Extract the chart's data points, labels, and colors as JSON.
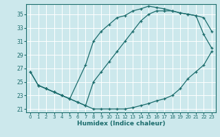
{
  "xlabel": "Humidex (Indice chaleur)",
  "bg_color": "#cce8ec",
  "grid_color": "#ffffff",
  "line_color": "#1a6b6b",
  "xlim": [
    -0.5,
    23.5
  ],
  "ylim": [
    20.5,
    36.5
  ],
  "xticks": [
    0,
    1,
    2,
    3,
    4,
    5,
    6,
    7,
    8,
    9,
    10,
    11,
    12,
    13,
    14,
    15,
    16,
    17,
    18,
    19,
    20,
    21,
    22,
    23
  ],
  "yticks": [
    21,
    23,
    25,
    27,
    29,
    31,
    33,
    35
  ],
  "line1": {
    "x": [
      0,
      1,
      2,
      3,
      4,
      5,
      6,
      7,
      8,
      9,
      10,
      11,
      12,
      13,
      14,
      15,
      16,
      17,
      18,
      19,
      20,
      21,
      22,
      23
    ],
    "y": [
      26.5,
      24.5,
      24.0,
      23.5,
      23.0,
      22.5,
      22.0,
      21.5,
      21.0,
      21.0,
      21.0,
      21.0,
      21.0,
      21.2,
      21.5,
      21.8,
      22.2,
      22.5,
      23.0,
      24.0,
      25.5,
      26.5,
      27.5,
      29.5
    ]
  },
  "line2": {
    "x": [
      0,
      1,
      2,
      3,
      4,
      5,
      7,
      8,
      9,
      10,
      11,
      12,
      13,
      14,
      15,
      16,
      17,
      18,
      19,
      20,
      21,
      22,
      23
    ],
    "y": [
      26.5,
      24.5,
      24.0,
      23.5,
      23.0,
      22.5,
      27.5,
      31.0,
      32.5,
      33.5,
      34.5,
      34.8,
      35.5,
      35.8,
      36.2,
      36.0,
      35.8,
      35.5,
      35.2,
      35.0,
      34.8,
      32.0,
      30.0
    ]
  },
  "line3": {
    "x": [
      1,
      2,
      3,
      4,
      5,
      6,
      7,
      8,
      9,
      10,
      11,
      12,
      13,
      14,
      15,
      16,
      17,
      18,
      19,
      20,
      21,
      22,
      23
    ],
    "y": [
      24.5,
      24.0,
      23.5,
      23.0,
      22.5,
      22.0,
      21.5,
      25.0,
      26.5,
      28.0,
      29.5,
      31.0,
      32.5,
      34.0,
      35.0,
      35.5,
      35.5,
      35.5,
      35.2,
      35.0,
      34.8,
      34.5,
      32.5
    ]
  }
}
